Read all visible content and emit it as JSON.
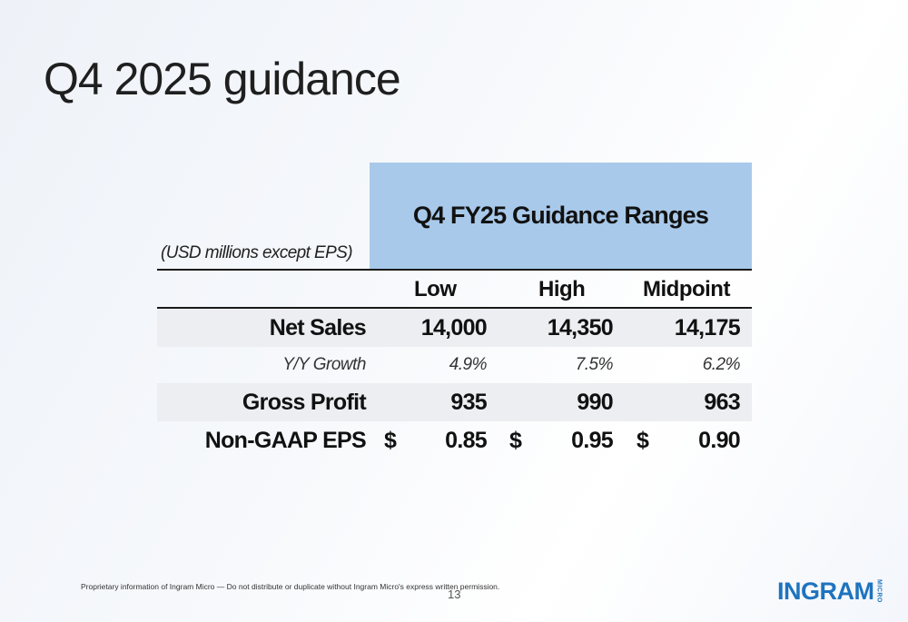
{
  "slide": {
    "title": "Q4 2025 guidance",
    "page_number": "13",
    "footer_note": "Proprietary information of Ingram Micro — Do not distribute or duplicate without Ingram Micro's express written permission.",
    "logo_text": "INGRAM",
    "logo_sub": "MICRO"
  },
  "table": {
    "units_label": "(USD millions except EPS)",
    "header": "Q4 FY25 Guidance Ranges",
    "columns": [
      "Low",
      "High",
      "Midpoint"
    ],
    "rows": [
      {
        "label": "Net Sales",
        "values": [
          "14,000",
          "14,350",
          "14,175"
        ]
      },
      {
        "label": "Y/Y Growth",
        "values": [
          "4.9%",
          "7.5%",
          "6.2%"
        ]
      },
      {
        "label": "Gross Profit",
        "values": [
          "935",
          "990",
          "963"
        ]
      },
      {
        "label": "Non-GAAP EPS",
        "currency": "$",
        "values": [
          "0.85",
          "0.95",
          "0.90"
        ]
      }
    ]
  },
  "colors": {
    "header_fill": "#a8c9ea",
    "shaded_row": "#eceef2",
    "brand": "#1e73be"
  }
}
